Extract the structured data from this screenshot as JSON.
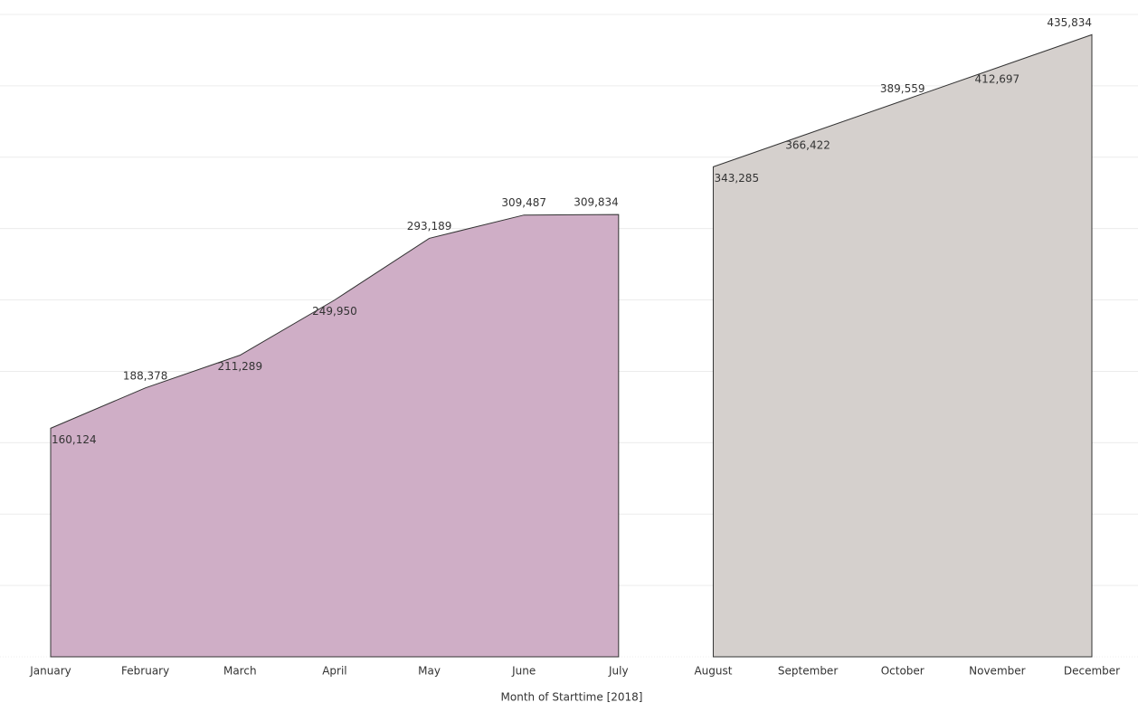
{
  "chart_data": {
    "type": "area",
    "x_label": "Month of Starttime [2018]",
    "categories": [
      "January",
      "February",
      "March",
      "April",
      "May",
      "June",
      "July",
      "August",
      "September",
      "October",
      "November",
      "December"
    ],
    "series": [
      {
        "color": "#cfaec6",
        "values": [
          160124,
          188378,
          211289,
          249950,
          293189,
          309487,
          309834,
          null,
          null,
          null,
          null,
          null
        ],
        "value_labels": [
          "160,124",
          "188,378",
          "211,289",
          "249,950",
          "293,189",
          "309,487",
          "309,834",
          null,
          null,
          null,
          null,
          null
        ]
      },
      {
        "color": "#d5d0cd",
        "values": [
          null,
          null,
          null,
          null,
          null,
          null,
          null,
          343285,
          366422,
          389559,
          412697,
          435834
        ],
        "value_labels": [
          null,
          null,
          null,
          null,
          null,
          null,
          null,
          "343,285",
          "366,422",
          "389,559",
          "412,697",
          "435,834"
        ]
      }
    ],
    "ylim": [
      0,
      450000
    ],
    "yticks": [
      0,
      50000,
      100000,
      150000,
      200000,
      250000,
      300000,
      350000,
      400000,
      450000
    ],
    "grid": true
  }
}
